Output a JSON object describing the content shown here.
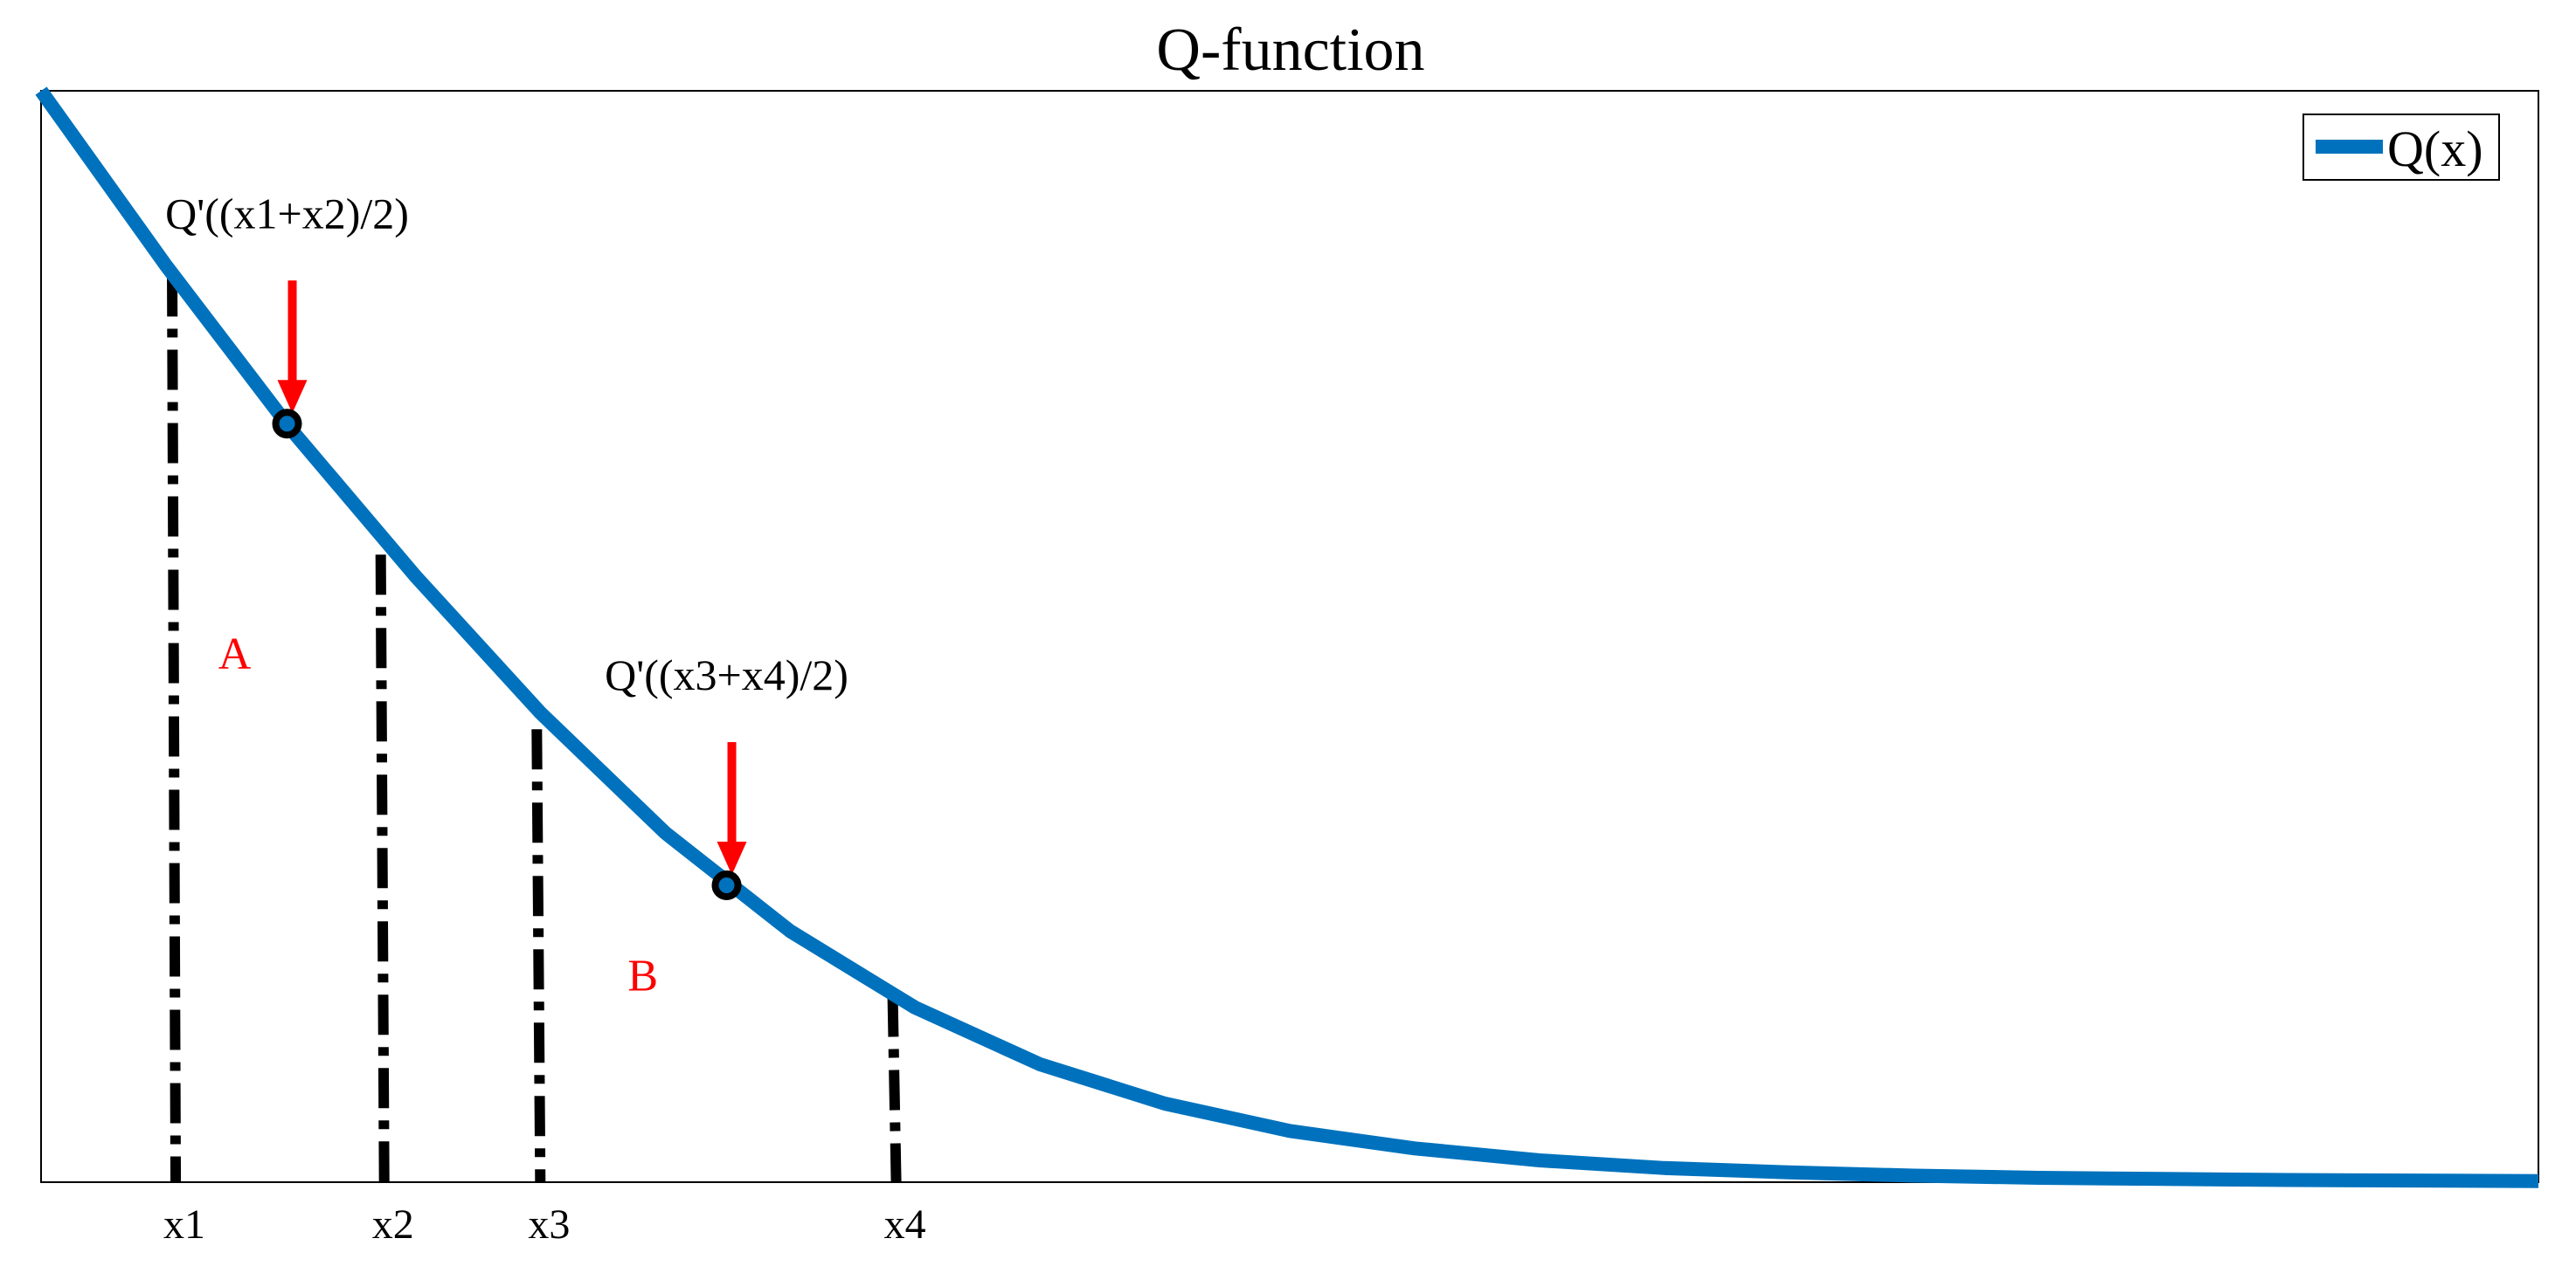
{
  "chart_data": {
    "type": "line",
    "title": "Q-function",
    "xlabel": "",
    "ylabel": "",
    "grid": false,
    "legend_position": "top-right",
    "xlim": [
      0,
      20
    ],
    "ylim": [
      0,
      1
    ],
    "series": [
      {
        "name": "Q(x)",
        "color": "#0072BD",
        "x": [
          0,
          1,
          2,
          3,
          4,
          5,
          6,
          7,
          8,
          9,
          10,
          11,
          12,
          13,
          14,
          15,
          16,
          17,
          18,
          19,
          20
        ],
        "y": [
          1.0,
          0.84,
          0.69,
          0.555,
          0.43,
          0.32,
          0.23,
          0.16,
          0.108,
          0.072,
          0.047,
          0.031,
          0.02,
          0.013,
          0.009,
          0.006,
          0.004,
          0.003,
          0.002,
          0.0015,
          0.001
        ]
      }
    ],
    "x_tick_labels": [
      {
        "label": "x1",
        "x": 1.05
      },
      {
        "label": "x2",
        "x": 2.72
      },
      {
        "label": "x3",
        "x": 3.97
      },
      {
        "label": "x4",
        "x": 6.82
      }
    ],
    "markers": [
      {
        "label": "Q'((x1+x2)/2)",
        "x": 1.97,
        "y": 0.695,
        "arrow_color": "#FF0000"
      },
      {
        "label": "Q'((x3+x4)/2)",
        "x": 5.49,
        "y": 0.272,
        "arrow_color": "#FF0000"
      }
    ],
    "region_labels": [
      {
        "label": "A",
        "x": 1.55,
        "y": 0.485,
        "color": "#FF0000"
      },
      {
        "label": "B",
        "x": 4.82,
        "y": 0.19,
        "color": "#FF0000"
      }
    ],
    "vertical_lines": [
      {
        "x": 1.05,
        "y_top": 0.83
      },
      {
        "x": 2.72,
        "y_top": 0.575
      },
      {
        "x": 3.97,
        "y_top": 0.415
      },
      {
        "x": 6.82,
        "y_top": 0.17
      }
    ]
  }
}
